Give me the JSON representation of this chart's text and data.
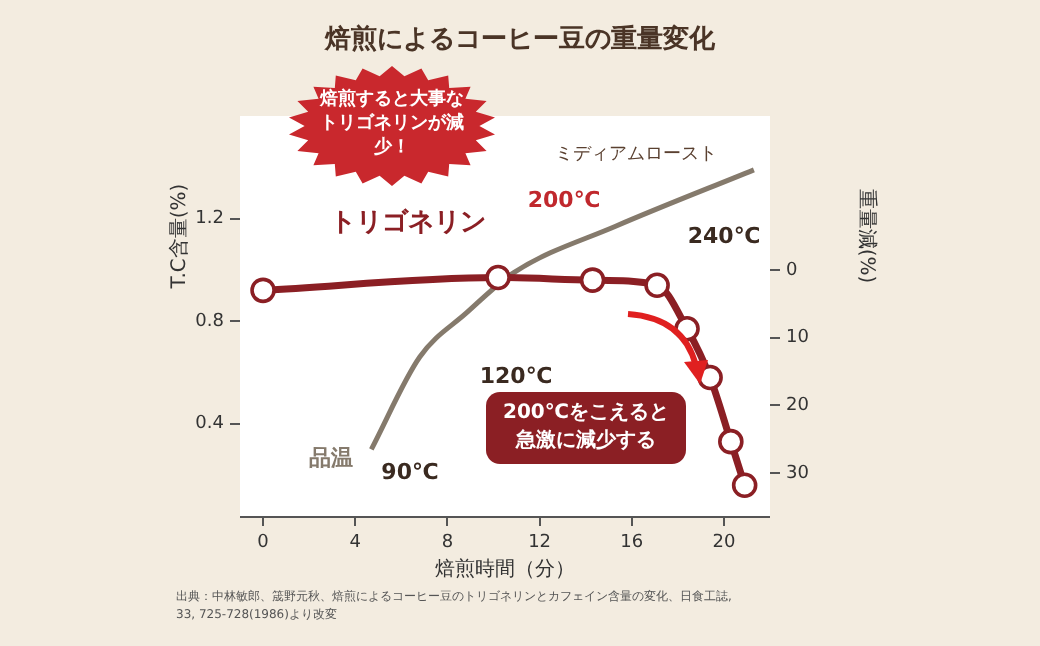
{
  "chart_data": {
    "type": "line",
    "title": "焙煎によるコーヒー豆の重量変化",
    "xlabel": "焙煎時間（分）",
    "ylabel": "T.C含量(%)",
    "y2label": "重量減(%)",
    "xlim": [
      -1,
      22
    ],
    "xticks": [
      0,
      4,
      8,
      12,
      16,
      20
    ],
    "ylim": [
      0.04,
      1.6
    ],
    "yticks": [
      0.4,
      0.8,
      1.2
    ],
    "y2lim": [
      36.3,
      -22.7
    ],
    "y2ticks": [
      0,
      10,
      20,
      30
    ],
    "grid": false,
    "legend": false,
    "series": [
      {
        "name": "トリゴネリン",
        "color": "#8b1f24",
        "marker": "circle",
        "x": [
          0,
          10.2,
          14.3,
          17.1,
          18.4,
          19.4,
          20.3,
          20.9
        ],
        "values": [
          0.92,
          0.97,
          0.96,
          0.94,
          0.77,
          0.58,
          0.33,
          0.16
        ]
      },
      {
        "name": "品温",
        "color": "#857a6c",
        "marker": "none",
        "x": [
          4.7,
          6.8,
          8.8,
          10.9,
          15.3,
          21.3
        ],
        "values": [
          0.3,
          0.66,
          0.83,
          0.99,
          1.17,
          1.39
        ]
      }
    ],
    "annotations": [
      "90℃",
      "120℃",
      "200℃",
      "240℃",
      "ミディアムロースト",
      "200℃をこえると急激に減少する",
      "焙煎すると大事なトリゴネリンが減少！",
      "出典：中林敏郎、筬野元秋、焙煎によるコーヒー豆のトリゴネリンとカフェイン含量の変化、日食工誌, 33, 725-728(1986)より改変"
    ]
  }
}
